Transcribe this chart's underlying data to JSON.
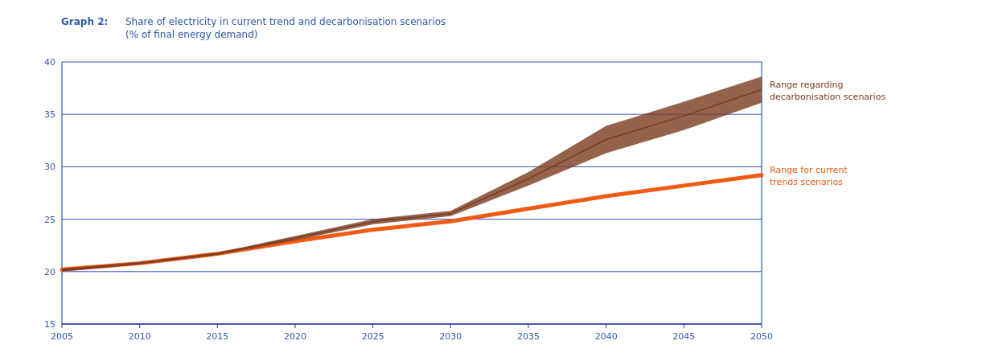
{
  "chart_data": {
    "type": "line",
    "title": "Graph 2: Share of electricity in current trend and decarbonisation scenarios",
    "subtitle": "(% of final energy demand)",
    "x": [
      2005,
      2010,
      2015,
      2020,
      2025,
      2030,
      2035,
      2040,
      2045,
      2050
    ],
    "xlim": [
      2005,
      2050
    ],
    "xticks": [
      2005,
      2010,
      2015,
      2020,
      2025,
      2030,
      2035,
      2040,
      2045,
      2050
    ],
    "ylim": [
      15,
      40
    ],
    "yticks": [
      15,
      20,
      25,
      30,
      35,
      40
    ],
    "grid": "y",
    "legend": false,
    "series": [
      {
        "name": "Range regarding decarbonisation scenarios",
        "color": "#7b3b1f",
        "values": [
          20.15,
          20.8,
          21.7,
          23.2,
          24.75,
          25.55,
          28.85,
          32.6,
          34.85,
          37.35
        ],
        "lower": [
          20.0,
          20.7,
          21.6,
          23.0,
          24.5,
          25.3,
          28.2,
          31.3,
          33.5,
          36.1
        ],
        "upper": [
          20.3,
          20.9,
          21.8,
          23.4,
          25.0,
          25.8,
          29.5,
          33.9,
          36.2,
          38.6
        ]
      },
      {
        "name": "Range for current trends scenarios",
        "color": "#f05a14",
        "values": [
          20.2,
          20.8,
          21.7,
          22.9,
          24.0,
          24.8,
          26.0,
          27.2,
          28.2,
          29.2
        ]
      }
    ]
  }
}
